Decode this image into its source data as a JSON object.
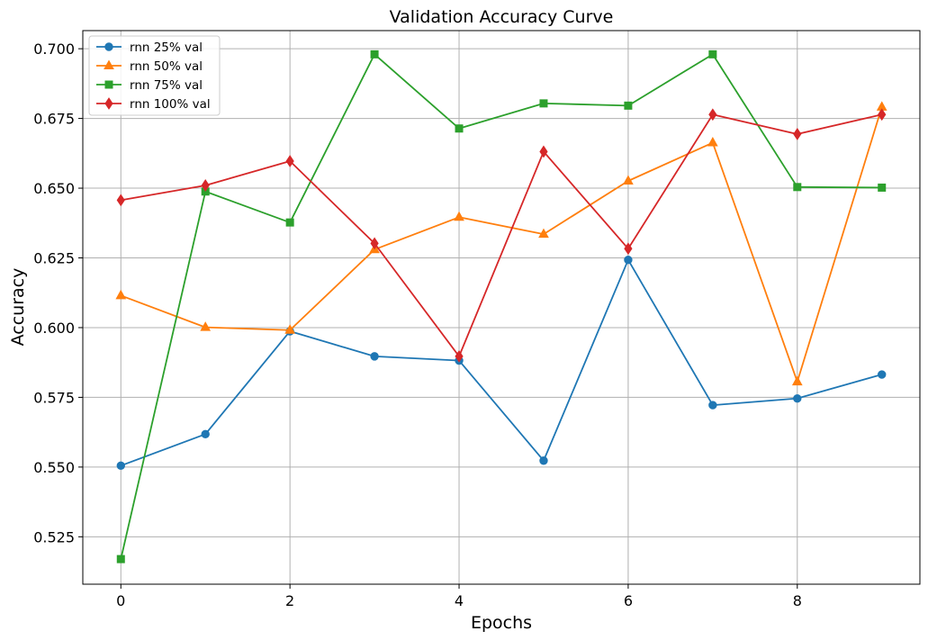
{
  "chart_data": {
    "type": "line",
    "title": "Validation Accuracy Curve",
    "xlabel": "Epochs",
    "ylabel": "Accuracy",
    "xlim": [
      -0.45,
      9.45
    ],
    "ylim": [
      0.508,
      0.7065
    ],
    "xticks": [
      0,
      2,
      4,
      6,
      8
    ],
    "xtick_labels": [
      "0",
      "2",
      "4",
      "6",
      "8"
    ],
    "yticks": [
      0.525,
      0.55,
      0.575,
      0.6,
      0.625,
      0.65,
      0.675,
      0.7
    ],
    "ytick_labels": [
      "0.525",
      "0.550",
      "0.575",
      "0.600",
      "0.625",
      "0.650",
      "0.675",
      "0.700"
    ],
    "grid": true,
    "legend_position": "top-left",
    "x": [
      0,
      1,
      2,
      3,
      4,
      5,
      6,
      7,
      8,
      9
    ],
    "series": [
      {
        "name": "rnn 25% val",
        "color": "#1f77b4",
        "marker": "circle",
        "values": [
          0.5505,
          0.5618,
          0.5987,
          0.5897,
          0.5882,
          0.5523,
          0.6243,
          0.5722,
          0.5746,
          0.5832
        ]
      },
      {
        "name": "rnn 50% val",
        "color": "#ff7f0e",
        "marker": "triangle",
        "values": [
          0.6115,
          0.6001,
          0.5991,
          0.628,
          0.6396,
          0.6335,
          0.6526,
          0.6663,
          0.5806,
          0.6791
        ]
      },
      {
        "name": "rnn 75% val",
        "color": "#2ca02c",
        "marker": "square",
        "values": [
          0.517,
          0.6488,
          0.6377,
          0.698,
          0.6714,
          0.6804,
          0.6796,
          0.698,
          0.6504,
          0.6502
        ]
      },
      {
        "name": "rnn 100% val",
        "color": "#d62728",
        "marker": "diamond",
        "values": [
          0.6457,
          0.651,
          0.6597,
          0.6302,
          0.5897,
          0.6631,
          0.6283,
          0.6764,
          0.6694,
          0.6764
        ]
      }
    ]
  }
}
